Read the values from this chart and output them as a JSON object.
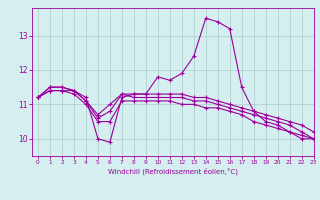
{
  "hours": [
    0,
    1,
    2,
    3,
    4,
    5,
    6,
    7,
    8,
    9,
    10,
    11,
    12,
    13,
    14,
    15,
    16,
    17,
    18,
    19,
    20,
    21,
    22,
    23
  ],
  "line1": [
    11.2,
    11.5,
    11.5,
    11.4,
    11.2,
    10.0,
    9.9,
    11.2,
    11.3,
    11.3,
    11.8,
    11.7,
    11.9,
    12.4,
    13.5,
    13.4,
    13.2,
    11.5,
    10.8,
    10.5,
    10.4,
    10.2,
    10.0,
    10.0
  ],
  "line2": [
    11.2,
    11.5,
    11.5,
    11.4,
    11.1,
    10.7,
    11.0,
    11.3,
    11.3,
    11.3,
    11.3,
    11.3,
    11.3,
    11.2,
    11.2,
    11.1,
    11.0,
    10.9,
    10.8,
    10.7,
    10.6,
    10.5,
    10.4,
    10.2
  ],
  "line3": [
    11.2,
    11.4,
    11.4,
    11.4,
    11.1,
    10.6,
    10.8,
    11.3,
    11.2,
    11.2,
    11.2,
    11.2,
    11.2,
    11.1,
    11.1,
    11.0,
    10.9,
    10.8,
    10.7,
    10.6,
    10.5,
    10.4,
    10.2,
    10.0
  ],
  "line4": [
    11.2,
    11.4,
    11.4,
    11.3,
    11.0,
    10.5,
    10.5,
    11.1,
    11.1,
    11.1,
    11.1,
    11.1,
    11.0,
    11.0,
    10.9,
    10.9,
    10.8,
    10.7,
    10.5,
    10.4,
    10.3,
    10.2,
    10.1,
    10.0
  ],
  "line_color": "#990099",
  "bg_color": "#d5eef0",
  "grid_color": "#aacccc",
  "xlabel": "Windchill (Refroidissement éolien,°C)",
  "ylim": [
    9.5,
    13.8
  ],
  "xlim": [
    -0.5,
    23
  ],
  "yticks": [
    10,
    11,
    12,
    13
  ],
  "xticks": [
    0,
    1,
    2,
    3,
    4,
    5,
    6,
    7,
    8,
    9,
    10,
    11,
    12,
    13,
    14,
    15,
    16,
    17,
    18,
    19,
    20,
    21,
    22,
    23
  ],
  "figsize": [
    3.2,
    2.0
  ],
  "dpi": 100
}
